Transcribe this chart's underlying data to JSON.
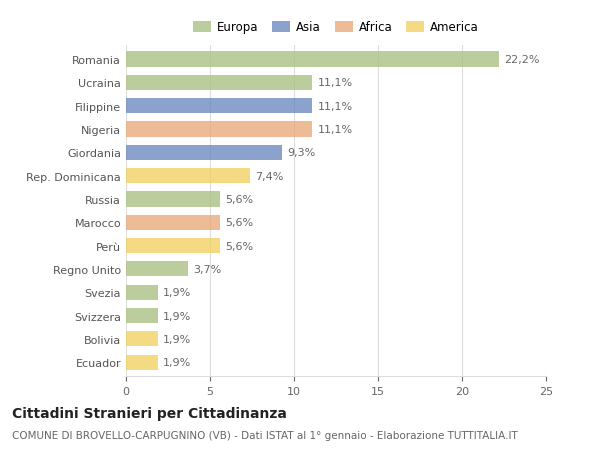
{
  "categories": [
    "Romania",
    "Ucraina",
    "Filippine",
    "Nigeria",
    "Giordania",
    "Rep. Dominicana",
    "Russia",
    "Marocco",
    "Perù",
    "Regno Unito",
    "Svezia",
    "Svizzera",
    "Bolivia",
    "Ecuador"
  ],
  "values": [
    22.2,
    11.1,
    11.1,
    11.1,
    9.3,
    7.4,
    5.6,
    5.6,
    5.6,
    3.7,
    1.9,
    1.9,
    1.9,
    1.9
  ],
  "labels": [
    "22,2%",
    "11,1%",
    "11,1%",
    "11,1%",
    "9,3%",
    "7,4%",
    "5,6%",
    "5,6%",
    "5,6%",
    "3,7%",
    "1,9%",
    "1,9%",
    "1,9%",
    "1,9%"
  ],
  "colors": [
    "#a8c080",
    "#a8c080",
    "#6b88c0",
    "#e8a878",
    "#6b88c0",
    "#f0d060",
    "#a8c080",
    "#e8a878",
    "#f0d060",
    "#a8c080",
    "#a8c080",
    "#a8c080",
    "#f0d060",
    "#f0d060"
  ],
  "legend": [
    {
      "label": "Europa",
      "color": "#a8c080"
    },
    {
      "label": "Asia",
      "color": "#6b88c0"
    },
    {
      "label": "Africa",
      "color": "#e8a878"
    },
    {
      "label": "America",
      "color": "#f0d060"
    }
  ],
  "xlim": [
    0,
    25
  ],
  "xticks": [
    0,
    5,
    10,
    15,
    20,
    25
  ],
  "title": "Cittadini Stranieri per Cittadinanza",
  "subtitle": "COMUNE DI BROVELLO-CARPUGNINO (VB) - Dati ISTAT al 1° gennaio - Elaborazione TUTTITALIA.IT",
  "bar_height": 0.65,
  "background_color": "#ffffff",
  "grid_color": "#dddddd",
  "label_fontsize": 8,
  "tick_fontsize": 8,
  "ytick_fontsize": 8,
  "title_fontsize": 10,
  "subtitle_fontsize": 7.5,
  "legend_fontsize": 8.5
}
